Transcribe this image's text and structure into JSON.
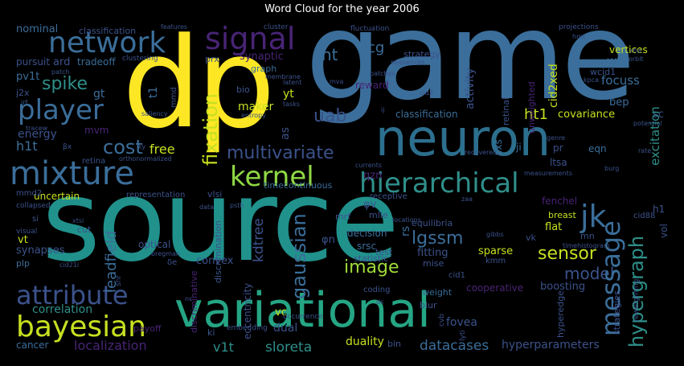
{
  "title": "Word Cloud for the year 2006",
  "colors": {
    "background": "#000000",
    "yellow": "#fde725",
    "teal": "#21918c",
    "blue": "#3b528b",
    "purple": "#482475",
    "green": "#5ec962",
    "cyan": "#26828e"
  },
  "words": {
    "source": "source",
    "game": "game",
    "dp": "dp",
    "neuron": "neuron",
    "variational": "variational",
    "mixture": "mixture",
    "hierarchical": "hierarchical",
    "network": "network",
    "player": "player",
    "signal": "signal",
    "bayesian": "bayesian",
    "attribute": "attribute",
    "kernel": "kernel",
    "multivariate": "multivariate",
    "message": "message",
    "hypergraph": "hypergraph",
    "gaussian": "gaussian",
    "spike": "spike",
    "cost": "cost",
    "fixation": "fixation",
    "jk": "jk",
    "image": "image",
    "sensor": "sensor",
    "model": "model",
    "leadfield": "leadfield",
    "kdtree": "kdtree",
    "lgssm": "lgssm",
    "uab": "uab",
    "ht": "ht",
    "lcg": "lcg",
    "ht1": "ht1",
    "covariance": "covariance",
    "focuss": "focuss",
    "free": "free",
    "h1t": "h1t",
    "energy": "energy",
    "correlation": "correlation",
    "localization": "localization",
    "sloreta": "sloreta",
    "datacases": "datacases",
    "hyperparameters": "hyperparameters",
    "duality": "duality",
    "v1t": "v1t",
    "convex": "convex",
    "classification": "classification",
    "nominal": "nominal",
    "ard": "ard",
    "tradeoff": "tradeoff",
    "pv1t": "pv1t",
    "pursuit": "pursuit",
    "gt": "gt",
    "j2x": "j2x",
    "maker": "maker",
    "yt": "yt",
    "uncertain": "uncertain",
    "optical": "optical",
    "synapses": "synapses",
    "plp": "plp",
    "vt": "vt",
    "payoff": "payoff",
    "cancer": "cancer",
    "wt": "wt",
    "vertices": "vertices",
    "bep": "bep",
    "excitation": "excitation",
    "sc": "sc",
    "eqn": "eqn",
    "ltsa": "ltsa",
    "flat": "flat",
    "sparse": "sparse",
    "fenchel": "fenchel",
    "breast": "breast",
    "boosting": "boosting",
    "cooperative": "cooperative",
    "fitting": "fitting",
    "decision": "decision",
    "srsc": "srsc",
    "test": "test",
    "mise": "mise",
    "statistic": "statistic",
    "weight": "weight",
    "blur": "blur",
    "fovea": "fovea",
    "dual": "dual",
    "vc": "vc",
    "rs": "rs",
    "equilibria": "equilibria",
    "activity": "activity",
    "cid2xed": "cid2xed",
    "unweighted": "unweighted",
    "retinal": "retinal",
    "strategy": "strategy",
    "reward": "reward",
    "synaptic": "synaptic",
    "prx": "prx",
    "graph": "graph",
    "bio": "bio",
    "as": "as",
    "qzn": "qzn",
    "phi_v": "φv",
    "phi_n": "φn",
    "mrf": "mrf",
    "mlle": "mlle",
    "receptive": "receptive",
    "timecontinuous": "timecontinuous",
    "vlsi": "vlsi",
    "representation": "representation",
    "mmd2": "mmd2",
    "retina": "retina",
    "mvm": "mvm",
    "wcid1": "wcid1",
    "h1": "h1",
    "vk": "vk",
    "mn": "mn",
    "cid88": "cid88",
    "cid1": "cid1",
    "kmm": "kmm",
    "ji": "ji",
    "axs": "axs",
    "pr": "pr",
    "vol": "vol",
    "cut": "cut",
    "si": "si",
    "eccentricity": "eccentricity",
    "discriminative": "discriminative",
    "discrimination": "discrimination",
    "hyperedge": "hyperedge",
    "strategies": "strategies",
    "coding": "coding",
    "t1": "t1",
    "ki": "ki",
    "bin": "bin",
    "embedding": "embedding",
    "occurrence": "occurrence",
    "lyti": "lyti",
    "cvb": "cvb",
    "reweighting": "reweighting",
    "collapsed": "collapsed",
    "visual": "visual",
    "clustering": "clustering",
    "patch": "patch",
    "cluster": "cluster",
    "fluctuation": "fluctuation",
    "projections": "projections",
    "features": "features",
    "sequences": "sequences",
    "patches": "patches",
    "mva": "mva",
    "latent": "latent",
    "membrane": "membrane",
    "tasks": "tasks",
    "entropy": "entropy",
    "saliency": "saliency",
    "irf": "irf",
    "orbit": "orbit",
    "rfid": "rfid",
    "kpca": "kpca",
    "genre": "genre",
    "rate": "rate",
    "timehistogram": "timehistogram",
    "gibbs": "gibbs",
    "recovered": "recovered",
    "currents": "currents",
    "locations": "locations",
    "bregman": "bregman",
    "orthonormalized": "orthonormalized",
    "measurements": "measurements",
    "potential": "potential",
    "burg": "burg",
    "tracew": "tracew",
    "mmd": "mmd",
    "psth": "psth",
    "beta_x": "βx",
    "ky": "ky",
    "data": "data",
    "xtsi": "xtsi",
    "cid21i": "cid21i",
    "snr": "snr",
    "nc": "nc",
    "ij": "ij",
    "cid2": "cid2",
    "hmt": "hmt",
    "zaa": "zaa",
    "delta_e": "δe",
    "ds": "ds"
  }
}
